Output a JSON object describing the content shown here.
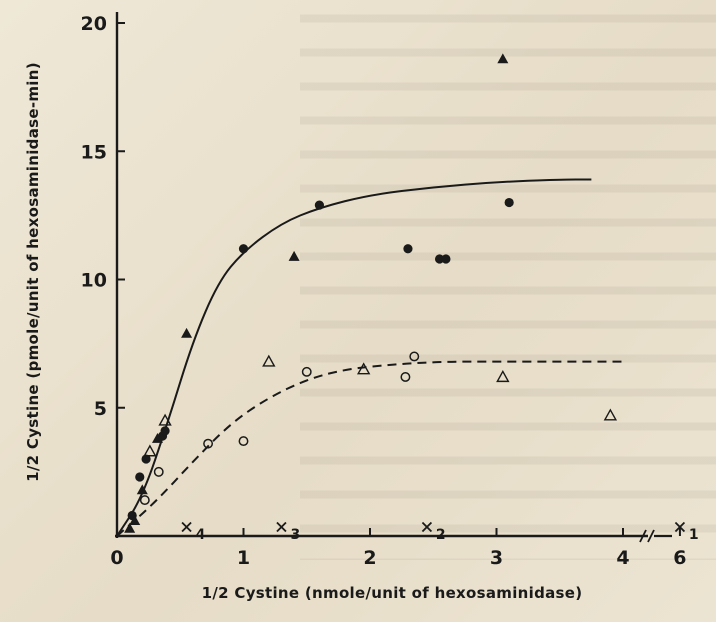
{
  "chart_data": {
    "type": "scatter",
    "xlabel": "1/2 Cystine (nmole/unit of hexosaminidase)",
    "ylabel": "1/2 Cystine (pmole/unit of hexosaminidase-min)",
    "xlim": [
      0,
      4.4
    ],
    "ylim": [
      0,
      20
    ],
    "x_ticks": [
      "0",
      "1",
      "2",
      "3",
      "4",
      "6"
    ],
    "y_ticks": [
      "5",
      "10",
      "15",
      "20"
    ],
    "grid": false,
    "series": [
      {
        "marker": "filled-circle",
        "x": [
          0.12,
          0.18,
          0.23,
          0.36,
          0.38,
          1.0,
          1.6,
          2.3,
          2.55,
          2.6,
          3.1
        ],
        "y": [
          0.8,
          2.3,
          3.0,
          3.9,
          4.1,
          11.2,
          12.9,
          11.2,
          10.8,
          10.8,
          13.0
        ]
      },
      {
        "marker": "filled-triangle",
        "x": [
          0.1,
          0.14,
          0.2,
          0.32,
          0.55,
          1.4,
          3.05
        ],
        "y": [
          0.3,
          0.6,
          1.8,
          3.8,
          7.9,
          10.9,
          18.6
        ]
      },
      {
        "marker": "open-circle",
        "x": [
          0.22,
          0.33,
          0.72,
          1.0,
          1.5,
          2.28,
          2.35
        ],
        "y": [
          1.4,
          2.5,
          3.6,
          3.7,
          6.4,
          6.2,
          7.0
        ]
      },
      {
        "marker": "open-triangle",
        "x": [
          0.26,
          0.38,
          1.2,
          1.95,
          3.05,
          3.9
        ],
        "y": [
          3.3,
          4.5,
          6.8,
          6.5,
          6.2,
          4.7
        ]
      }
    ],
    "curves": [
      {
        "style": "solid",
        "x": [
          0.0,
          0.2,
          0.4,
          0.6,
          0.8,
          1.0,
          1.3,
          1.6,
          2.0,
          2.5,
          3.0,
          3.5,
          3.75
        ],
        "y": [
          0.0,
          1.5,
          4.4,
          7.6,
          9.9,
          11.1,
          12.2,
          12.8,
          13.3,
          13.6,
          13.8,
          13.9,
          13.9
        ]
      },
      {
        "style": "dashed",
        "x": [
          0.0,
          0.3,
          0.6,
          0.9,
          1.2,
          1.5,
          1.8,
          2.2,
          2.6,
          3.0,
          3.5,
          4.0
        ],
        "y": [
          0.0,
          1.3,
          2.9,
          4.4,
          5.4,
          6.1,
          6.5,
          6.7,
          6.8,
          6.8,
          6.8,
          6.8
        ]
      }
    ],
    "x_markers": [
      {
        "x": 0.55,
        "label": "4"
      },
      {
        "x": 1.3,
        "label": "3"
      },
      {
        "x": 2.45,
        "label": "2"
      },
      {
        "x": 4.45,
        "label": "1"
      }
    ]
  },
  "colors": {
    "ink": "#1a1a1a",
    "paper": "#e9e1cf"
  }
}
